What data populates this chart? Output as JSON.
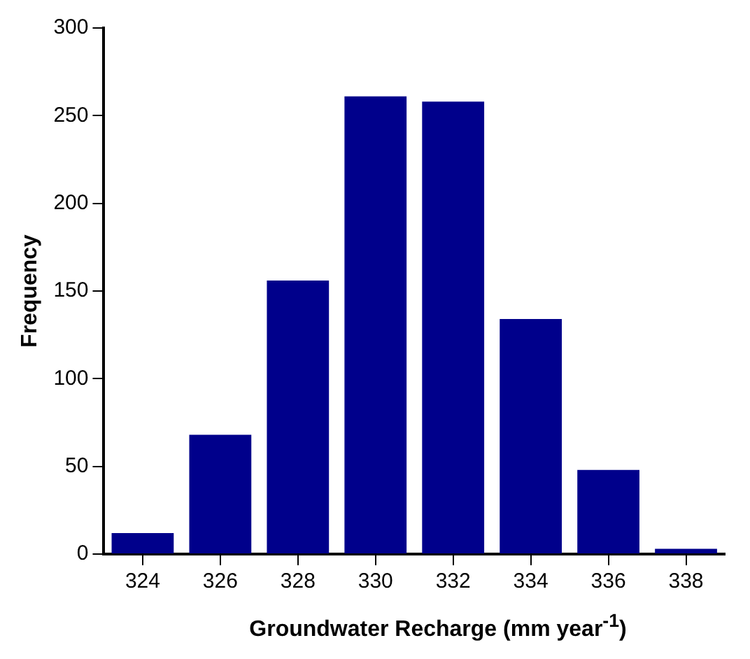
{
  "chart_data": {
    "type": "bar",
    "xlabel": "Groundwater Recharge (mm year$^{-1}$)",
    "ylabel": "Frequency",
    "categories": [
      "324",
      "326",
      "328",
      "330",
      "332",
      "334",
      "336",
      "338"
    ],
    "values": [
      12,
      68,
      156,
      261,
      258,
      134,
      48,
      3
    ],
    "color": "#00008b",
    "ylim": [
      0,
      300
    ],
    "yticks": [
      0,
      50,
      100,
      150,
      200,
      250,
      300
    ],
    "grid": false,
    "legend": false
  }
}
